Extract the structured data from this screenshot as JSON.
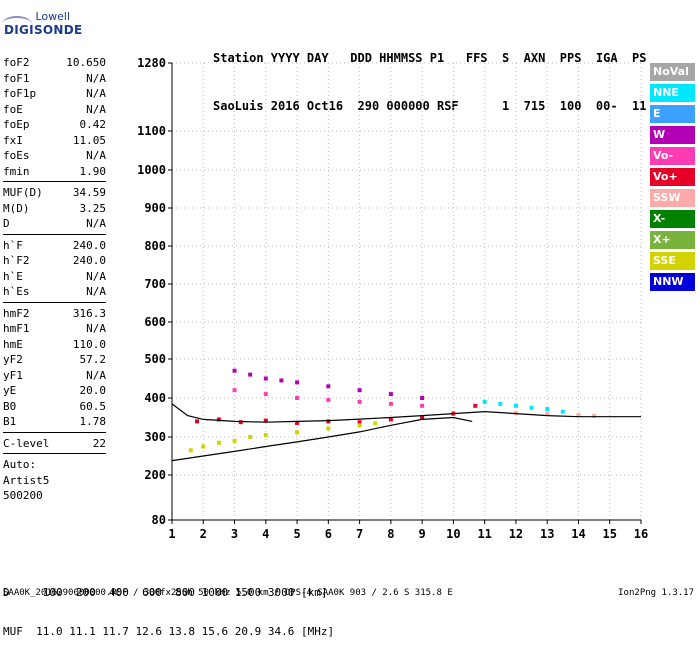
{
  "logo": {
    "line1": "Lowell",
    "line2": "DIGISONDE"
  },
  "header": {
    "labels": "Station YYYY DAY   DDD HHMMSS P1   FFS  S  AXN  PPS  IGA  PS",
    "values": "SaoLuis 2016 Oct16  290 000000 RSF      1  715  100  00-  11"
  },
  "params": [
    {
      "label": "foF2",
      "value": "10.650"
    },
    {
      "label": "foF1",
      "value": "N/A"
    },
    {
      "label": "foF1p",
      "value": "N/A"
    },
    {
      "label": "foE",
      "value": "N/A"
    },
    {
      "label": "foEp",
      "value": "0.42"
    },
    {
      "label": "fxI",
      "value": "11.05"
    },
    {
      "label": "foEs",
      "value": "N/A"
    },
    {
      "label": "fmin",
      "value": "1.90"
    },
    {
      "sep": true
    },
    {
      "label": "MUF(D)",
      "value": "34.59"
    },
    {
      "label": "M(D)",
      "value": "3.25"
    },
    {
      "label": "D",
      "value": "N/A"
    },
    {
      "sep": true
    },
    {
      "label": "h`F",
      "value": "240.0"
    },
    {
      "label": "h`F2",
      "value": "240.0"
    },
    {
      "label": "h`E",
      "value": "N/A"
    },
    {
      "label": "h`Es",
      "value": "N/A"
    },
    {
      "sep": true
    },
    {
      "label": "hmF2",
      "value": "316.3"
    },
    {
      "label": "hmF1",
      "value": "N/A"
    },
    {
      "label": "hmE",
      "value": "110.0"
    },
    {
      "label": "yF2",
      "value": "57.2"
    },
    {
      "label": "yF1",
      "value": "N/A"
    },
    {
      "label": "yE",
      "value": "20.0"
    },
    {
      "label": "B0",
      "value": "60.5"
    },
    {
      "label": "B1",
      "value": "1.78"
    },
    {
      "sep": true
    },
    {
      "label": "C-level",
      "value": "22"
    },
    {
      "sep": true
    },
    {
      "text": "Auto:"
    },
    {
      "text": "Artist5"
    },
    {
      "text": "500200"
    }
  ],
  "legend": [
    {
      "label": "NoVal",
      "bg": "#a6a6a6",
      "fg": "#ffffff"
    },
    {
      "label": "NNE",
      "bg": "#00e8ff",
      "fg": "#ffffff"
    },
    {
      "label": "E",
      "bg": "#3ca0ff",
      "fg": "#ffffff"
    },
    {
      "label": "W",
      "bg": "#b400b4",
      "fg": "#ffffff"
    },
    {
      "label": "Vo-",
      "bg": "#ff3cb4",
      "fg": "#ffffff"
    },
    {
      "label": "Vo+",
      "bg": "#e60028",
      "fg": "#ffffff"
    },
    {
      "label": "SSW",
      "bg": "#ffaaaa",
      "fg": "#ffffff"
    },
    {
      "label": "X-",
      "bg": "#008200",
      "fg": "#ffffff"
    },
    {
      "label": "X+",
      "bg": "#78b43c",
      "fg": "#ffffff"
    },
    {
      "label": "SSE",
      "bg": "#d2d200",
      "fg": "#ffffff"
    },
    {
      "label": "NNW",
      "bg": "#0000dc",
      "fg": "#ffffff"
    }
  ],
  "chart_data": {
    "type": "scatter",
    "title": "",
    "xlabel": "",
    "ylabel": "",
    "xlim": [
      1,
      16
    ],
    "ylim": [
      80,
      1280
    ],
    "x_ticks": [
      1,
      2,
      3,
      4,
      5,
      6,
      7,
      8,
      9,
      10,
      11,
      12,
      13,
      14,
      15,
      16
    ],
    "y_ticks": [
      80,
      200,
      300,
      400,
      500,
      600,
      700,
      800,
      900,
      1000,
      1100,
      1280
    ],
    "y_scale": "nonlinear (ionogram virtual-height scale)",
    "grid": "dotted",
    "series": [
      {
        "color": "#e60028",
        "points": [
          [
            1.8,
            340
          ],
          [
            2.5,
            345
          ],
          [
            3.2,
            338
          ],
          [
            4,
            342
          ],
          [
            5,
            336
          ],
          [
            6,
            340
          ],
          [
            7,
            338
          ],
          [
            8,
            345
          ],
          [
            9,
            350
          ],
          [
            10,
            360
          ],
          [
            10.7,
            380
          ]
        ]
      },
      {
        "color": "#d2d200",
        "points": [
          [
            1.6,
            265
          ],
          [
            2,
            275
          ],
          [
            2.5,
            285
          ],
          [
            3,
            290
          ],
          [
            3.5,
            300
          ],
          [
            4,
            305
          ],
          [
            5,
            312
          ],
          [
            6,
            322
          ],
          [
            7,
            330
          ],
          [
            7.5,
            335
          ]
        ]
      },
      {
        "color": "#b400b4",
        "points": [
          [
            3,
            470
          ],
          [
            3.5,
            460
          ],
          [
            4,
            450
          ],
          [
            4.5,
            445
          ],
          [
            5,
            440
          ],
          [
            6,
            430
          ],
          [
            7,
            420
          ],
          [
            8,
            410
          ],
          [
            9,
            400
          ]
        ]
      },
      {
        "color": "#ff3cb4",
        "points": [
          [
            3,
            420
          ],
          [
            4,
            410
          ],
          [
            5,
            400
          ],
          [
            6,
            395
          ],
          [
            7,
            390
          ],
          [
            8,
            385
          ],
          [
            9,
            380
          ]
        ]
      },
      {
        "color": "#00e8ff",
        "points": [
          [
            11,
            390
          ],
          [
            11.5,
            385
          ],
          [
            12,
            380
          ],
          [
            12.5,
            375
          ],
          [
            13,
            372
          ],
          [
            13.5,
            365
          ]
        ]
      },
      {
        "color": "#ffaaaa",
        "points": [
          [
            12,
            362
          ],
          [
            13,
            360
          ],
          [
            14,
            356
          ],
          [
            14.5,
            354
          ]
        ]
      }
    ],
    "traces": [
      {
        "color": "#000000",
        "points": [
          [
            1,
            238
          ],
          [
            2,
            250
          ],
          [
            3,
            262
          ],
          [
            4,
            275
          ],
          [
            5,
            287
          ],
          [
            6,
            300
          ],
          [
            7,
            313
          ],
          [
            8,
            330
          ],
          [
            9,
            345
          ],
          [
            10,
            350
          ],
          [
            10.6,
            340
          ]
        ]
      },
      {
        "color": "#000000",
        "points": [
          [
            1,
            385
          ],
          [
            1.5,
            355
          ],
          [
            2,
            345
          ],
          [
            3,
            340
          ],
          [
            4,
            338
          ],
          [
            5,
            340
          ],
          [
            6,
            342
          ],
          [
            7,
            346
          ],
          [
            8,
            350
          ],
          [
            9,
            355
          ],
          [
            10,
            360
          ],
          [
            11,
            365
          ],
          [
            12,
            360
          ],
          [
            13,
            355
          ],
          [
            14,
            352
          ],
          [
            16,
            352
          ]
        ]
      }
    ]
  },
  "footer": {
    "d_row": "D     100  200  400  600  800 1000 1500 3000 [km]",
    "muf_row": "MUF  11.0 11.1 11.7 12.6 13.8 15.6 20.9 34.6 [MHz]"
  },
  "bottom_line": "SAA0K_2016290000000.RSF / 300fx256h 50 kHz 5.0 km / DPS-4 SAA0K 903 / 2.6 S 315.8 E",
  "version": "Ion2Png 1.3.17"
}
